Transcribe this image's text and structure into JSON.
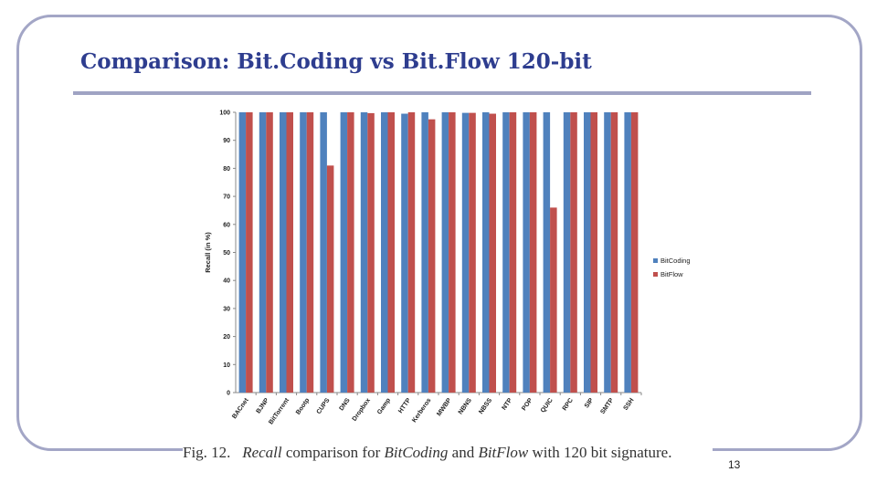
{
  "slide": {
    "title": "Comparison: Bit.Coding vs Bit.Flow 120-bit",
    "page_number": "13",
    "caption": {
      "fig_label": "Fig. 12.",
      "recall": "Recall",
      "text1": " comparison for ",
      "method1": "BitCoding",
      "text2": " and ",
      "method2": "BitFlow",
      "text3": " with 120 bit signature."
    }
  },
  "colors": {
    "title": "#2e3d8f",
    "rule": "#9fa3c3",
    "frame": "#a3a6c6"
  },
  "chart_data": {
    "type": "bar",
    "title": "",
    "xlabel": "",
    "ylabel": "Recall (in %)",
    "ylim": [
      0,
      100
    ],
    "yticks": [
      0,
      10,
      20,
      30,
      40,
      50,
      60,
      70,
      80,
      90,
      100
    ],
    "grid": false,
    "legend_position": "right",
    "categories": [
      "BACnet",
      "BJNP",
      "BitTorrent",
      "Bootp",
      "CUPS",
      "DNS",
      "Dropbox",
      "Gamp",
      "HTTP",
      "Kerberos",
      "MWBP",
      "NBNS",
      "NBSS",
      "NTP",
      "POP",
      "QUIC",
      "RPC",
      "SIP",
      "SMTP",
      "SSH"
    ],
    "series": [
      {
        "name": "BitCoding",
        "color": "#4f81bd",
        "values": [
          100,
          100,
          100,
          100,
          100,
          100,
          100,
          100,
          99.5,
          100,
          100,
          99.8,
          100,
          100,
          100,
          100,
          100,
          100,
          100,
          100
        ]
      },
      {
        "name": "BitFlow",
        "color": "#c0504d",
        "values": [
          100,
          100,
          100,
          100,
          81,
          100,
          99.7,
          100,
          100,
          97.5,
          100,
          99.8,
          99.5,
          100,
          100,
          66,
          100,
          100,
          100,
          100
        ]
      }
    ]
  }
}
